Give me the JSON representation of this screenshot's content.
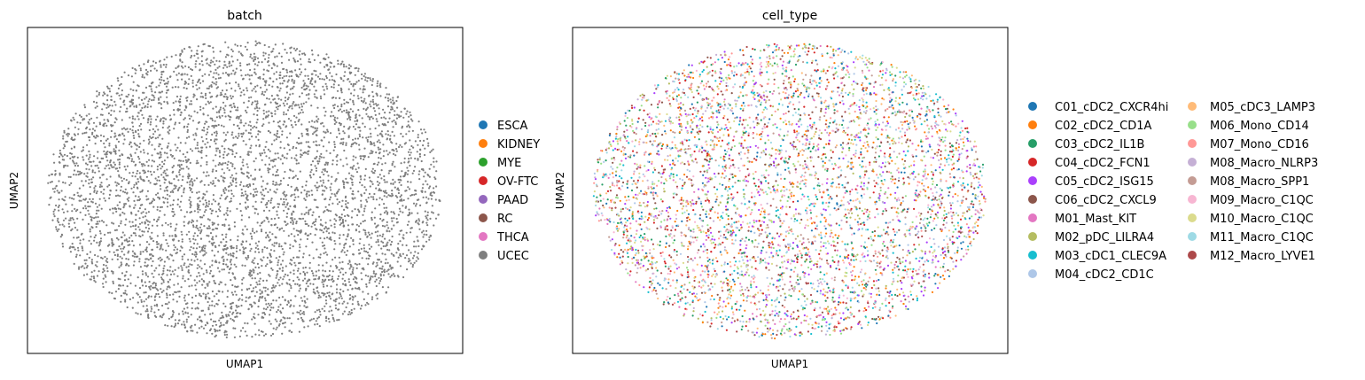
{
  "chart_data": [
    {
      "type": "scatter",
      "title": "batch",
      "xlabel": "UMAP1",
      "ylabel": "UMAP2",
      "grid": false,
      "ticks": false,
      "legend_position": "right",
      "legend": [
        {
          "label": "ESCA",
          "color": "#1f77b4"
        },
        {
          "label": "KIDNEY",
          "color": "#ff7f0e"
        },
        {
          "label": "MYE",
          "color": "#2ca02c"
        },
        {
          "label": "OV-FTC",
          "color": "#d62728"
        },
        {
          "label": "PAAD",
          "color": "#9467bd"
        },
        {
          "label": "RC",
          "color": "#8c564b"
        },
        {
          "label": "THCA",
          "color": "#e377c2"
        },
        {
          "label": "UCEC",
          "color": "#7f7f7f"
        }
      ],
      "visible_category": "UCEC",
      "cloud": {
        "shape": "ellipse",
        "x_range": [
          -1,
          1
        ],
        "y_range": [
          -1,
          1
        ],
        "point_count": 5000,
        "seed": 7
      }
    },
    {
      "type": "scatter",
      "title": "cell_type",
      "xlabel": "UMAP1",
      "ylabel": "UMAP2",
      "grid": false,
      "ticks": false,
      "legend_position": "right",
      "legend": [
        {
          "label": "C01_cDC2_CXCR4hi",
          "color": "#1f77b4"
        },
        {
          "label": "C02_cDC2_CD1A",
          "color": "#ff7f0e"
        },
        {
          "label": "C03_cDC2_IL1B",
          "color": "#279e68"
        },
        {
          "label": "C04_cDC2_FCN1",
          "color": "#d62728"
        },
        {
          "label": "C05_cDC2_ISG15",
          "color": "#aa40fc"
        },
        {
          "label": "C06_cDC2_CXCL9",
          "color": "#8c564b"
        },
        {
          "label": "M01_Mast_KIT",
          "color": "#e377c2"
        },
        {
          "label": "M02_pDC_LILRA4",
          "color": "#b5bd61"
        },
        {
          "label": "M03_cDC1_CLEC9A",
          "color": "#17becf"
        },
        {
          "label": "M04_cDC2_CD1C",
          "color": "#aec7e8"
        },
        {
          "label": "M05_cDC3_LAMP3",
          "color": "#ffbb78"
        },
        {
          "label": "M06_Mono_CD14",
          "color": "#98df8a"
        },
        {
          "label": "M07_Mono_CD16",
          "color": "#ff9896"
        },
        {
          "label": "M08_Macro_NLRP3",
          "color": "#c5b0d5"
        },
        {
          "label": "M08_Macro_SPP1",
          "color": "#c49c94"
        },
        {
          "label": "M09_Macro_C1QC",
          "color": "#f7b6d2"
        },
        {
          "label": "M10_Macro_C1QC",
          "color": "#dbdb8d"
        },
        {
          "label": "M11_Macro_C1QC",
          "color": "#9edae5"
        },
        {
          "label": "M12_Macro_LYVE1",
          "color": "#ad494a"
        }
      ],
      "cloud": {
        "shape": "ellipse",
        "x_range": [
          -1,
          1
        ],
        "y_range": [
          -1,
          1
        ],
        "point_count": 5000,
        "seed": 13
      }
    }
  ]
}
